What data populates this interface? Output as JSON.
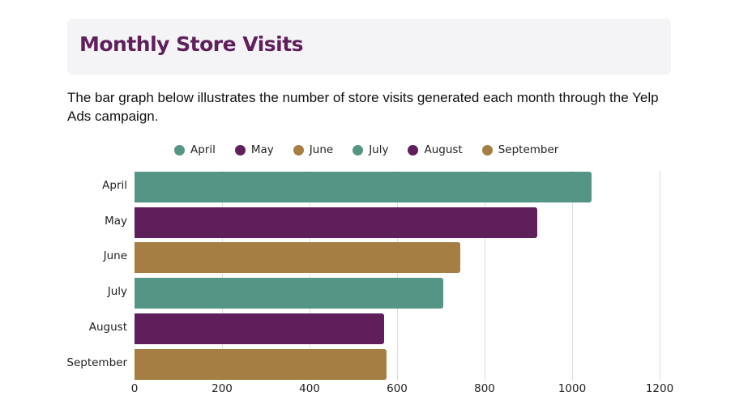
{
  "header": {
    "title": "Monthly Store Visits"
  },
  "description": "The bar graph below illustrates the number of store visits generated each month through the Yelp Ads campaign.",
  "colors": {
    "teal": "#559585",
    "purple": "#5f1f5b",
    "gold": "#a57e43",
    "title": "#5f1f5b",
    "header_bg": "#f4f4f6"
  },
  "legend": [
    {
      "label": "April",
      "color": "#559585"
    },
    {
      "label": "May",
      "color": "#5f1f5b"
    },
    {
      "label": "June",
      "color": "#a57e43"
    },
    {
      "label": "July",
      "color": "#559585"
    },
    {
      "label": "August",
      "color": "#5f1f5b"
    },
    {
      "label": "September",
      "color": "#a57e43"
    }
  ],
  "x_ticks": [
    "0",
    "200",
    "400",
    "600",
    "800",
    "1000",
    "1200"
  ],
  "chart_data": {
    "type": "bar",
    "orientation": "horizontal",
    "title": "Monthly Store Visits",
    "categories": [
      "April",
      "May",
      "June",
      "July",
      "August",
      "September"
    ],
    "values": [
      1045,
      920,
      745,
      705,
      570,
      575
    ],
    "colors": [
      "#559585",
      "#5f1f5b",
      "#a57e43",
      "#559585",
      "#5f1f5b",
      "#a57e43"
    ],
    "xlabel": "",
    "ylabel": "",
    "xlim": [
      0,
      1200
    ],
    "x_ticks": [
      0,
      200,
      400,
      600,
      800,
      1000,
      1200
    ],
    "grid": true,
    "legend_position": "top"
  }
}
